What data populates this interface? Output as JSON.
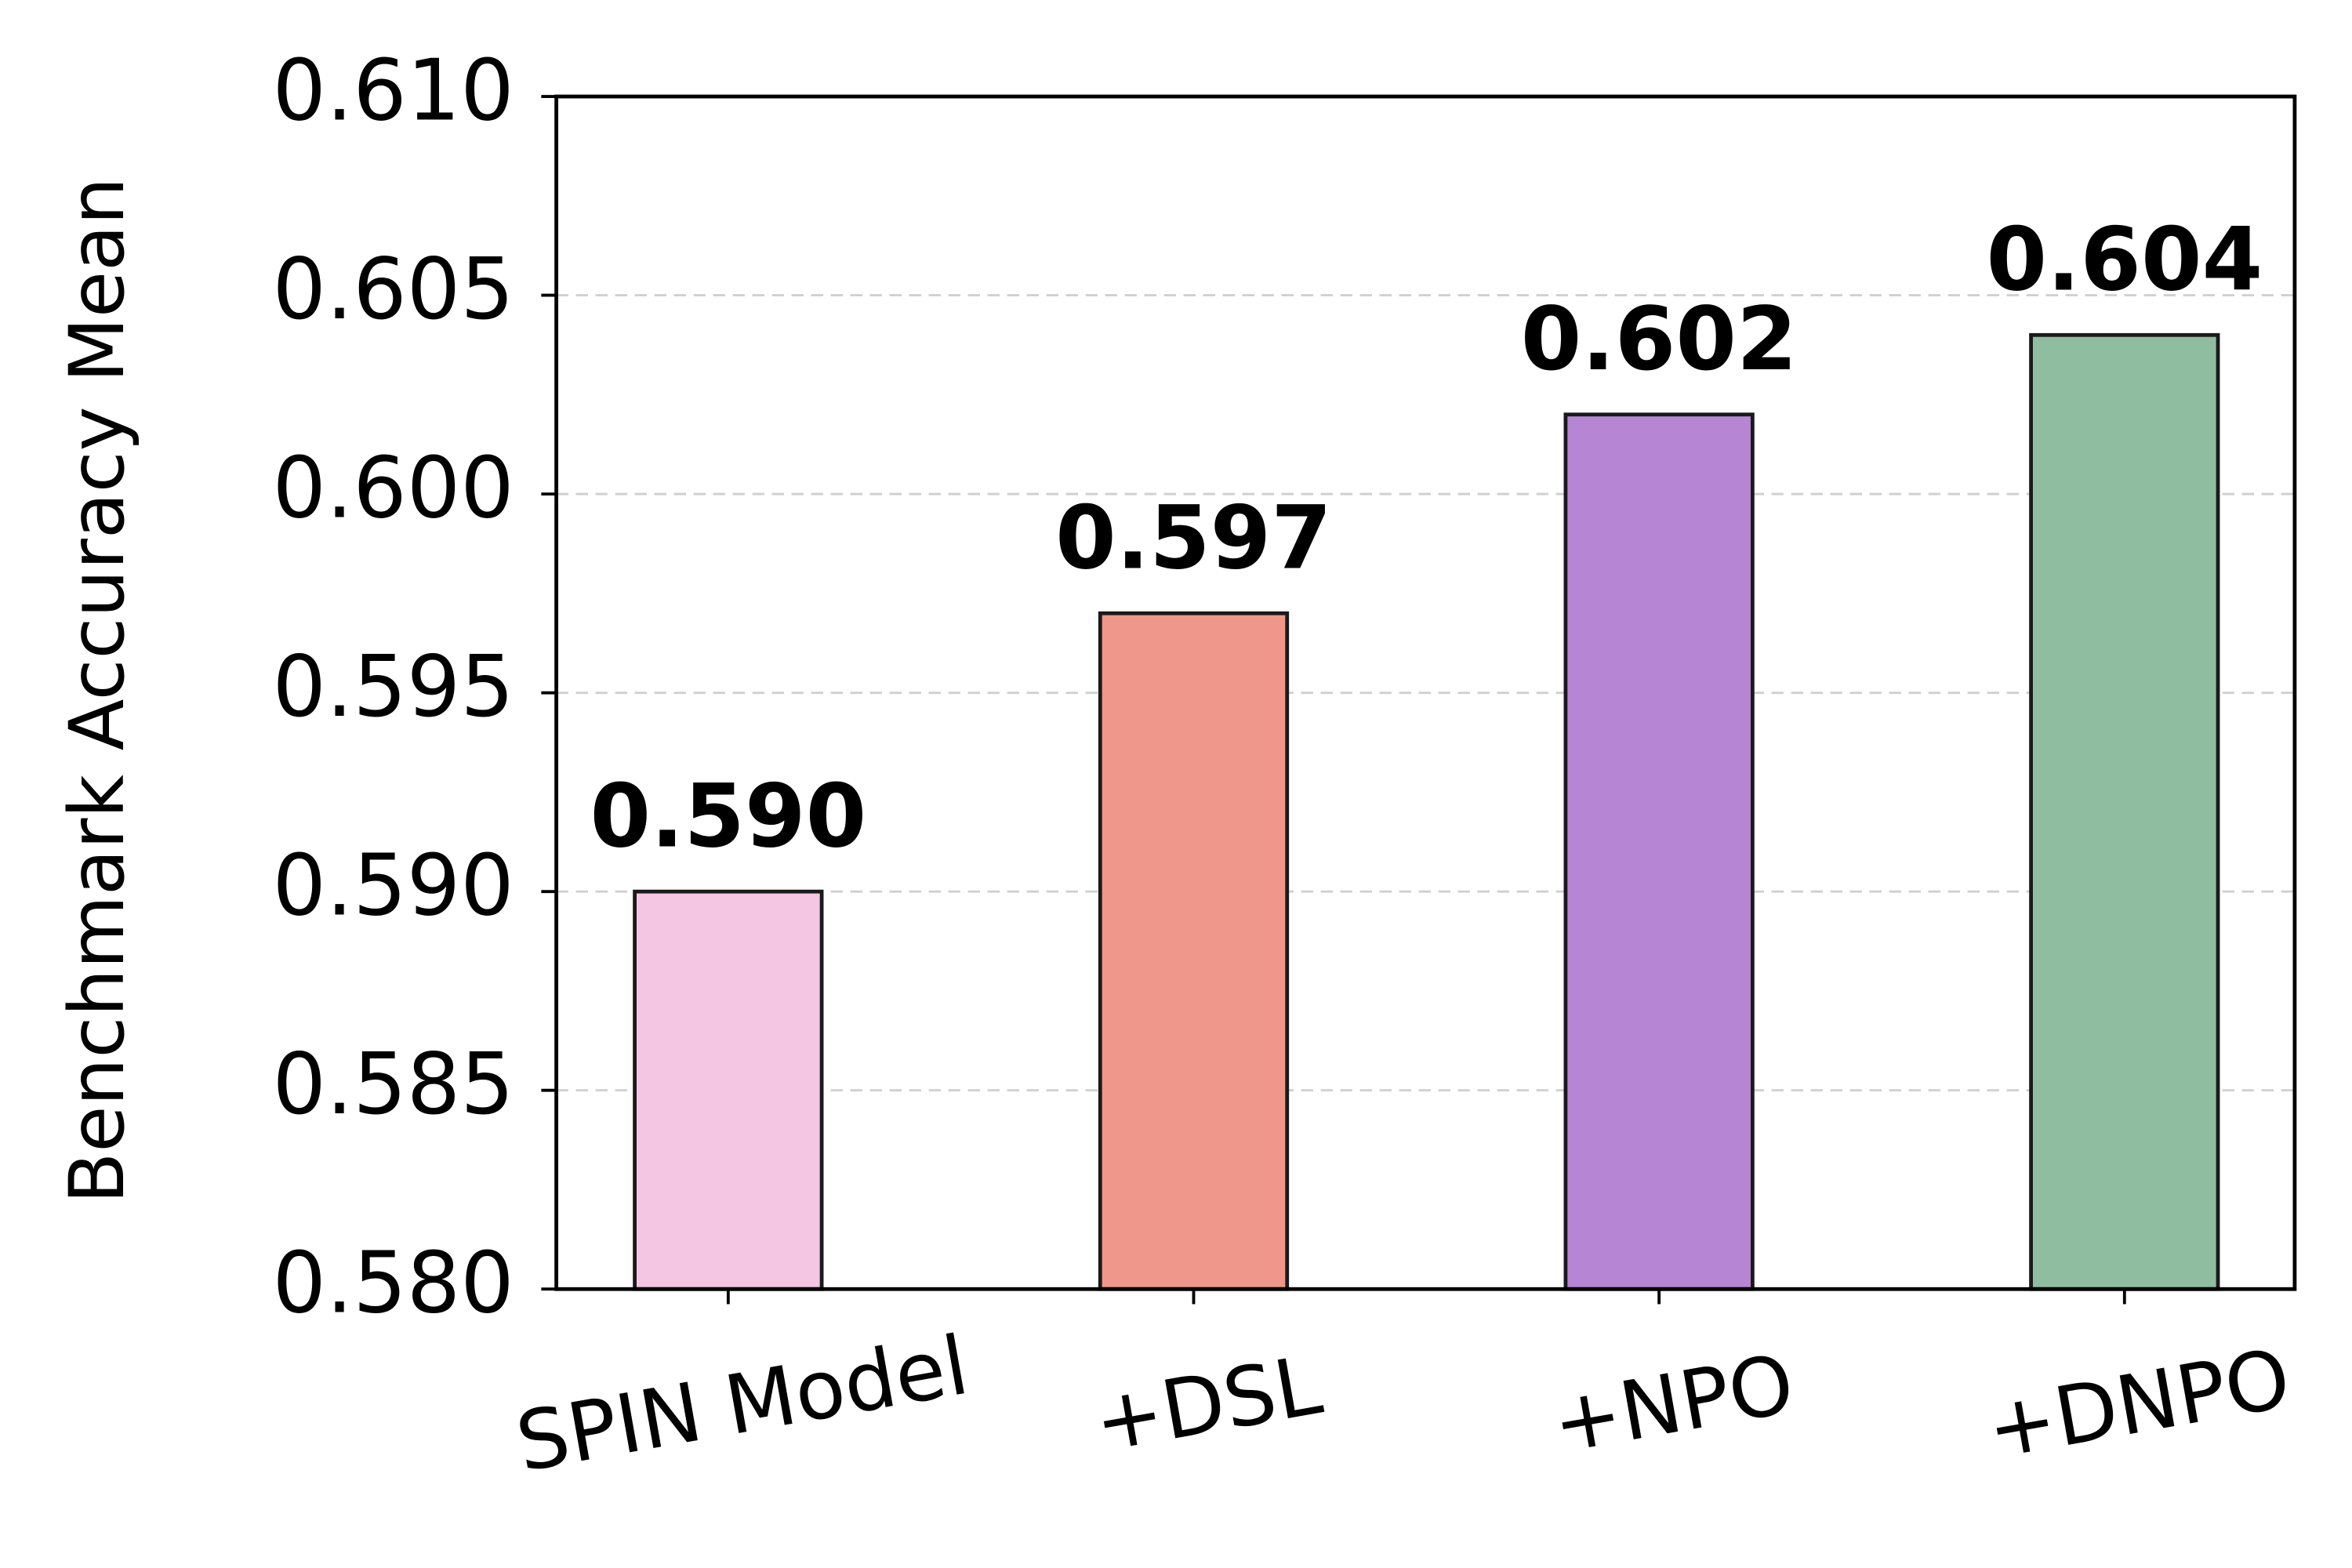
{
  "chart_data": {
    "type": "bar",
    "y_label": "Benchmark Accuracy Mean",
    "categories": [
      "SPIN Model",
      "+DSL",
      "+NPO",
      "+DNPO"
    ],
    "values": [
      0.59,
      0.597,
      0.602,
      0.604
    ],
    "value_labels": [
      "0.590",
      "0.597",
      "0.602",
      "0.604"
    ],
    "colors": [
      "#f4c6e3",
      "#ee978a",
      "#b685d4",
      "#8fbd9f"
    ],
    "ylim": [
      0.58,
      0.61
    ],
    "yticks": [
      {
        "value": 0.58,
        "label": "0.580"
      },
      {
        "value": 0.585,
        "label": "0.585"
      },
      {
        "value": 0.59,
        "label": "0.590"
      },
      {
        "value": 0.595,
        "label": "0.595"
      },
      {
        "value": 0.6,
        "label": "0.600"
      },
      {
        "value": 0.605,
        "label": "0.605"
      },
      {
        "value": 0.61,
        "label": "0.610"
      }
    ],
    "grid": true
  }
}
